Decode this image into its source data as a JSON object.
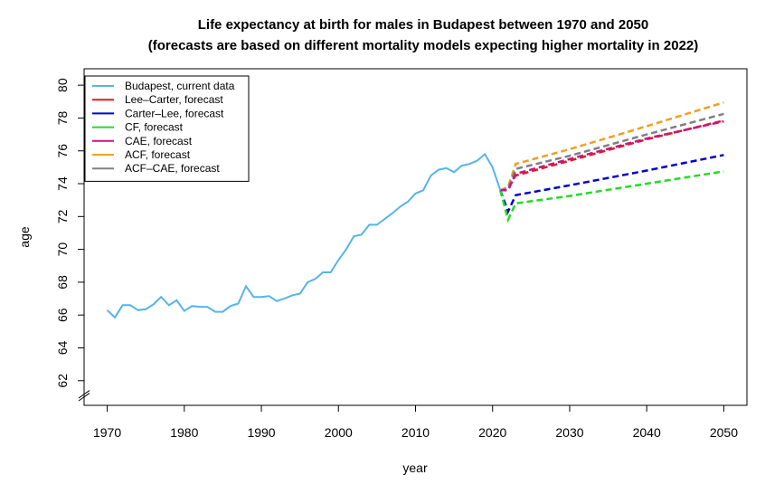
{
  "chart_data": {
    "type": "line",
    "title": "Life expectancy at birth for males in Budapest between 1970 and 2050",
    "subtitle": "(forecasts are based on different mortality models expecting higher mortality in 2022)",
    "xlabel": "year",
    "ylabel": "age",
    "xlim": [
      1967,
      2053
    ],
    "ylim": [
      60.5,
      81
    ],
    "x_ticks": [
      1970,
      1980,
      1990,
      2000,
      2010,
      2020,
      2030,
      2040,
      2050
    ],
    "y_ticks": [
      62,
      64,
      66,
      68,
      70,
      72,
      74,
      76,
      78,
      80
    ],
    "axis_break": "y-axis below 62",
    "grid": false,
    "legend_position": "top-left",
    "series": [
      {
        "name": "Budapest, current data",
        "color": "#56B4E9",
        "style": "solid",
        "x": [
          1970,
          1971,
          1972,
          1973,
          1974,
          1975,
          1976,
          1977,
          1978,
          1979,
          1980,
          1981,
          1982,
          1983,
          1984,
          1985,
          1986,
          1987,
          1988,
          1989,
          1990,
          1991,
          1992,
          1993,
          1994,
          1995,
          1996,
          1997,
          1998,
          1999,
          2000,
          2001,
          2002,
          2003,
          2004,
          2005,
          2006,
          2007,
          2008,
          2009,
          2010,
          2011,
          2012,
          2013,
          2014,
          2015,
          2016,
          2017,
          2018,
          2019,
          2020,
          2021
        ],
        "values": [
          66.3,
          65.85,
          66.6,
          66.6,
          66.3,
          66.35,
          66.65,
          67.1,
          66.6,
          66.9,
          66.25,
          66.55,
          66.5,
          66.5,
          66.2,
          66.2,
          66.55,
          66.7,
          67.75,
          67.1,
          67.1,
          67.15,
          66.85,
          67.0,
          67.2,
          67.3,
          68.0,
          68.2,
          68.6,
          68.6,
          69.35,
          70.0,
          70.8,
          70.9,
          71.5,
          71.5,
          71.85,
          72.2,
          72.6,
          72.9,
          73.4,
          73.6,
          74.5,
          74.85,
          74.95,
          74.7,
          75.1,
          75.2,
          75.4,
          75.8,
          75.0,
          73.6
        ]
      },
      {
        "name": "Lee–Carter, forecast",
        "color": "#E41A1C",
        "style": "dashed",
        "x": [
          2021,
          2022,
          2023,
          2030,
          2040,
          2050
        ],
        "values": [
          73.6,
          73.7,
          74.5,
          75.4,
          76.7,
          77.85
        ]
      },
      {
        "name": "Carter–Lee, forecast",
        "color": "#0000CC",
        "style": "dashed",
        "x": [
          2021,
          2022,
          2023,
          2030,
          2040,
          2050
        ],
        "values": [
          73.6,
          72.3,
          73.3,
          73.9,
          74.8,
          75.75
        ]
      },
      {
        "name": "CF, forecast",
        "color": "#22DD22",
        "style": "dashed",
        "x": [
          2021,
          2022,
          2023,
          2030,
          2040,
          2050
        ],
        "values": [
          73.6,
          71.8,
          72.8,
          73.25,
          74.0,
          74.75
        ]
      },
      {
        "name": "CAE, forecast",
        "color": "#C71585",
        "style": "dashed",
        "x": [
          2021,
          2022,
          2023,
          2030,
          2040,
          2050
        ],
        "values": [
          73.6,
          73.6,
          74.6,
          75.5,
          76.75,
          77.8
        ]
      },
      {
        "name": "ACF, forecast",
        "color": "#F0A020",
        "style": "dashed",
        "x": [
          2021,
          2022,
          2023,
          2030,
          2040,
          2050
        ],
        "values": [
          73.6,
          73.8,
          75.2,
          76.1,
          77.5,
          78.95
        ]
      },
      {
        "name": "ACF–CAE, forecast",
        "color": "#808080",
        "style": "dashed",
        "x": [
          2021,
          2022,
          2023,
          2030,
          2040,
          2050
        ],
        "values": [
          73.6,
          73.7,
          74.9,
          75.7,
          77.0,
          78.25
        ]
      }
    ]
  }
}
